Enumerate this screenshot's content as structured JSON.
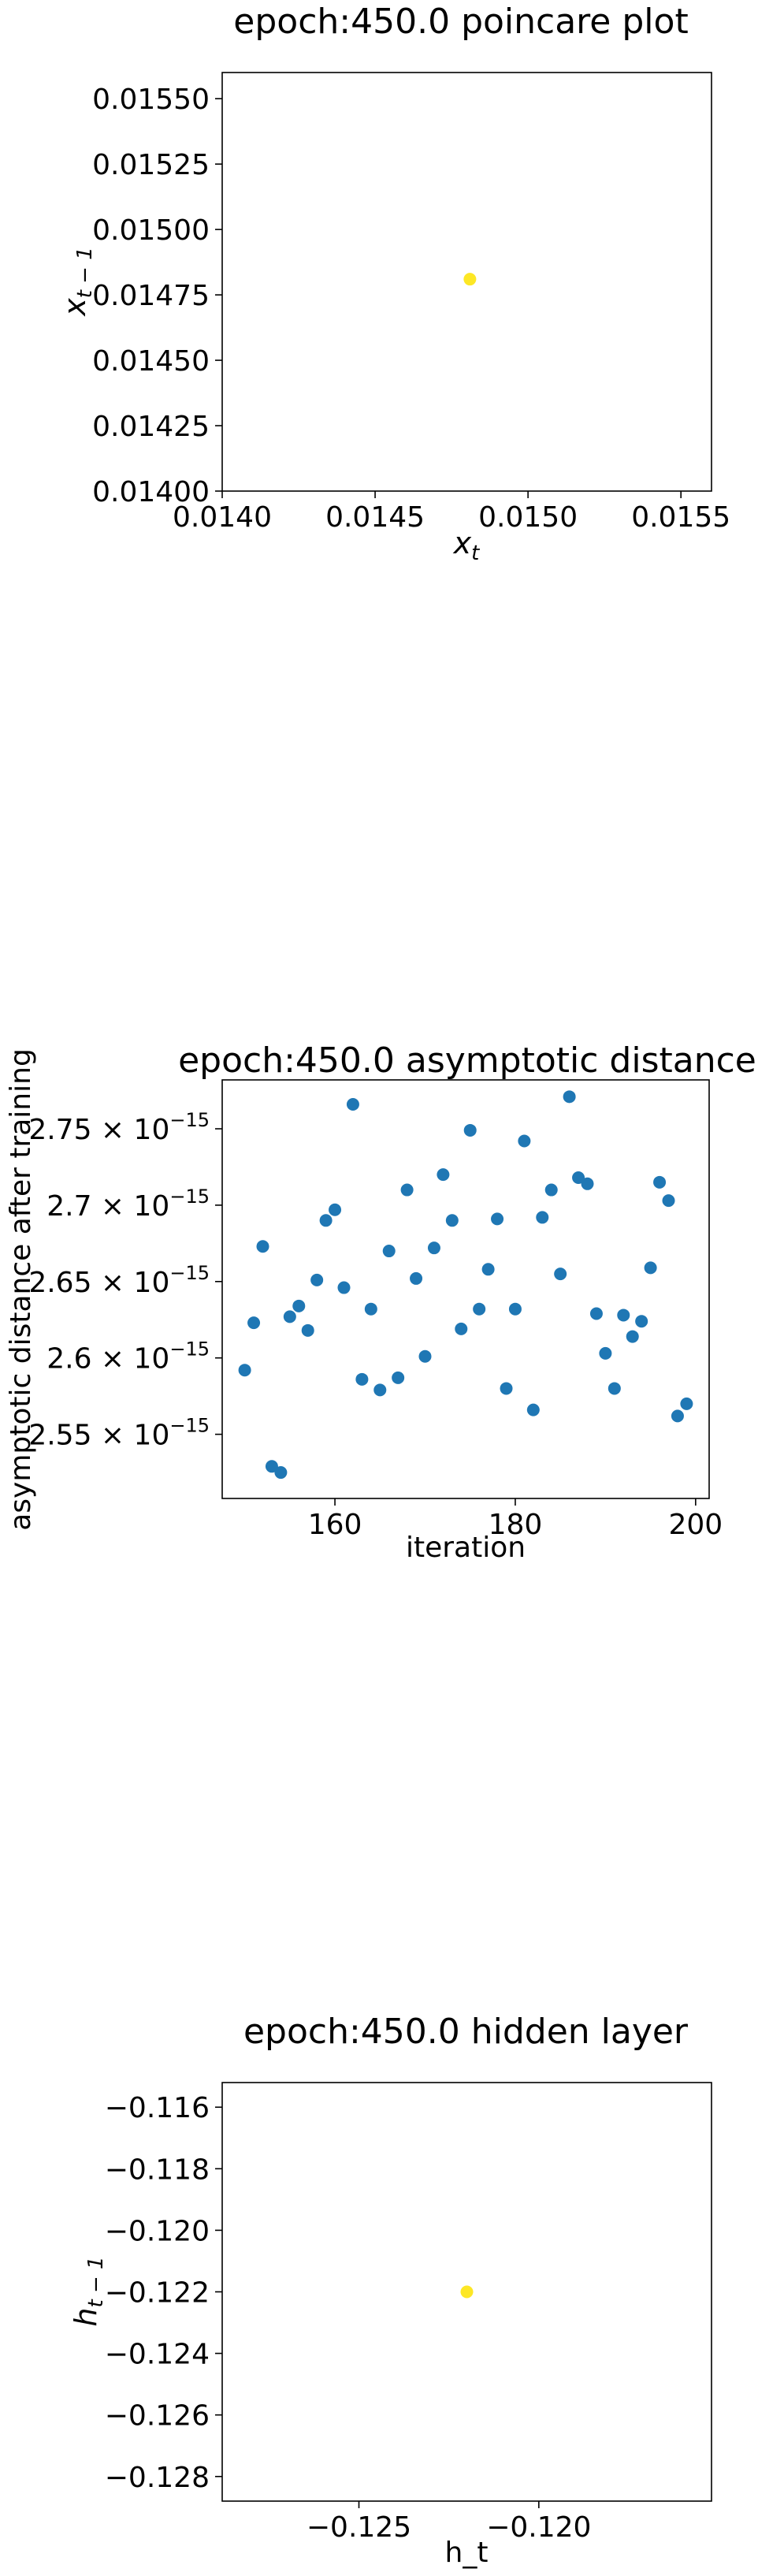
{
  "chart_data": [
    {
      "type": "scatter",
      "title": "epoch:450.0 poincare plot",
      "xlabel": "x_t",
      "ylabel": "x_{t-1}",
      "xlim": [
        0.014,
        0.0156
      ],
      "ylim": [
        0.014,
        0.0156
      ],
      "xticks": [
        "0.0140",
        "0.0145",
        "0.0150",
        "0.0155"
      ],
      "yticks": [
        "0.01400",
        "0.01425",
        "0.01450",
        "0.01475",
        "0.01500",
        "0.01525",
        "0.01550"
      ],
      "x": [
        0.01481
      ],
      "y": [
        0.01481
      ],
      "marker_color": "#fde725",
      "grid": false
    },
    {
      "type": "scatter",
      "title": "epoch:450.0 asymptotic distance",
      "xlabel": "iteration",
      "ylabel": "asymptotic distance after training",
      "xlim": [
        147.5,
        201.5
      ],
      "ylim": [
        2.508e-15,
        2.782e-15
      ],
      "xticks": [
        "160",
        "180",
        "200"
      ],
      "yticks": [
        "2.55 × 10",
        "2.6 × 10",
        "2.65 × 10",
        "2.7 × 10",
        "2.75 × 10"
      ],
      "ytick_exponent": "−15",
      "x": [
        150,
        151,
        152,
        153,
        154,
        155,
        156,
        157,
        158,
        159,
        160,
        161,
        162,
        163,
        164,
        165,
        166,
        167,
        168,
        169,
        170,
        171,
        172,
        173,
        174,
        175,
        176,
        177,
        178,
        179,
        180,
        181,
        182,
        183,
        184,
        185,
        186,
        187,
        188,
        189,
        190,
        191,
        192,
        193,
        194,
        195,
        196,
        197,
        198,
        199
      ],
      "y": [
        2.592e-15,
        2.623e-15,
        2.673e-15,
        2.529e-15,
        2.525e-15,
        2.627e-15,
        2.634e-15,
        2.618e-15,
        2.651e-15,
        2.69e-15,
        2.697e-15,
        2.646e-15,
        2.766e-15,
        2.586e-15,
        2.632e-15,
        2.579e-15,
        2.67e-15,
        2.587e-15,
        2.71e-15,
        2.652e-15,
        2.601e-15,
        2.672e-15,
        2.72e-15,
        2.69e-15,
        2.619e-15,
        2.749e-15,
        2.632e-15,
        2.658e-15,
        2.691e-15,
        2.58e-15,
        2.632e-15,
        2.742e-15,
        2.566e-15,
        2.692e-15,
        2.71e-15,
        2.655e-15,
        2.771e-15,
        2.718e-15,
        2.714e-15,
        2.629e-15,
        2.603e-15,
        2.58e-15,
        2.628e-15,
        2.614e-15,
        2.624e-15,
        2.659e-15,
        2.715e-15,
        2.703e-15,
        2.562e-15,
        2.57e-15
      ],
      "marker_color": "#1f77b4",
      "grid": false
    },
    {
      "type": "scatter",
      "title": "epoch:450.0 hidden layer",
      "xlabel": "h_t",
      "ylabel": "h_{t-1}",
      "xlim": [
        -0.1288,
        -0.1152
      ],
      "ylim": [
        -0.1288,
        -0.1152
      ],
      "xticks": [
        "−0.125",
        "−0.120"
      ],
      "yticks": [
        "−0.128",
        "−0.126",
        "−0.124",
        "−0.122",
        "−0.120",
        "−0.118",
        "−0.116"
      ],
      "x": [
        -0.122
      ],
      "y": [
        -0.122
      ],
      "marker_color": "#fde725",
      "grid": false
    }
  ]
}
